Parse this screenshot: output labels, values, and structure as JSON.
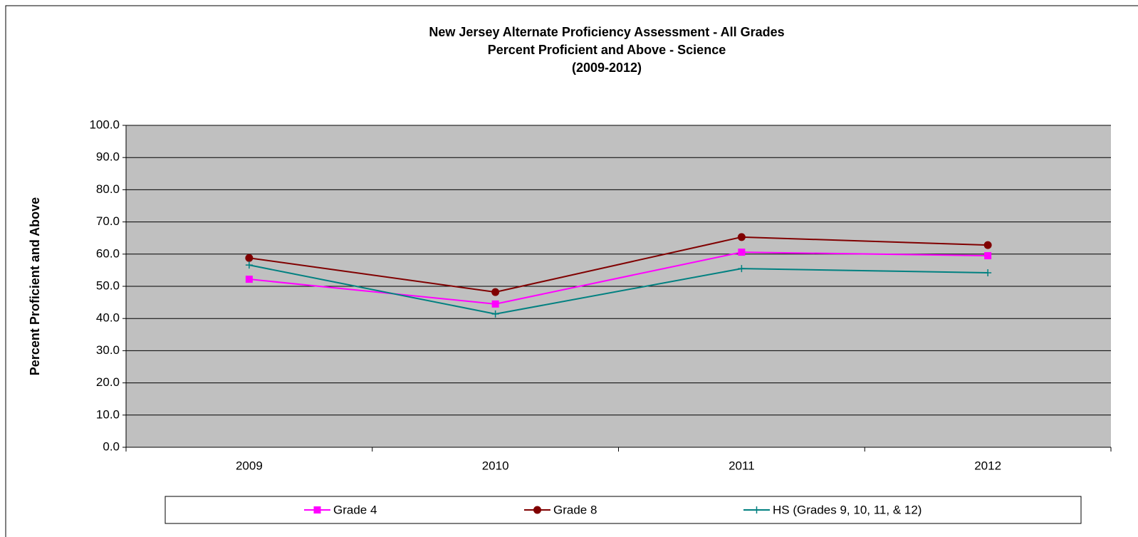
{
  "chart_data": {
    "type": "line",
    "title": [
      "New Jersey Alternate Proficiency Assessment - All Grades",
      "Percent Proficient and Above - Science",
      "(2009-2012)"
    ],
    "ylabel": "Percent Proficient and Above",
    "categories": [
      "2009",
      "2010",
      "2011",
      "2012"
    ],
    "series": [
      {
        "name": "Grade 4",
        "color": "#ff00ff",
        "marker": "square",
        "values": [
          52.2,
          44.5,
          60.6,
          59.5
        ]
      },
      {
        "name": "Grade 8",
        "color": "#800000",
        "marker": "circle",
        "values": [
          58.8,
          48.2,
          65.3,
          62.8
        ]
      },
      {
        "name": "HS (Grades 9, 10, 11, & 12)",
        "color": "#008080",
        "marker": "plus",
        "values": [
          56.6,
          41.4,
          55.5,
          54.2
        ]
      }
    ],
    "ylim": [
      0,
      100
    ],
    "yticks": [
      {
        "value": 0,
        "label": "0.0"
      },
      {
        "value": 10,
        "label": "10.0"
      },
      {
        "value": 20,
        "label": "20.0"
      },
      {
        "value": 30,
        "label": "30.0"
      },
      {
        "value": 40,
        "label": "40.0"
      },
      {
        "value": 50,
        "label": "50.0"
      },
      {
        "value": 60,
        "label": "60.0"
      },
      {
        "value": 70,
        "label": "70.0"
      },
      {
        "value": 80,
        "label": "80.0"
      },
      {
        "value": 90,
        "label": "90.0"
      },
      {
        "value": 100,
        "label": "100.0"
      }
    ],
    "grid": true,
    "plot_background": "#c0c0c0",
    "legend": "bottom"
  }
}
